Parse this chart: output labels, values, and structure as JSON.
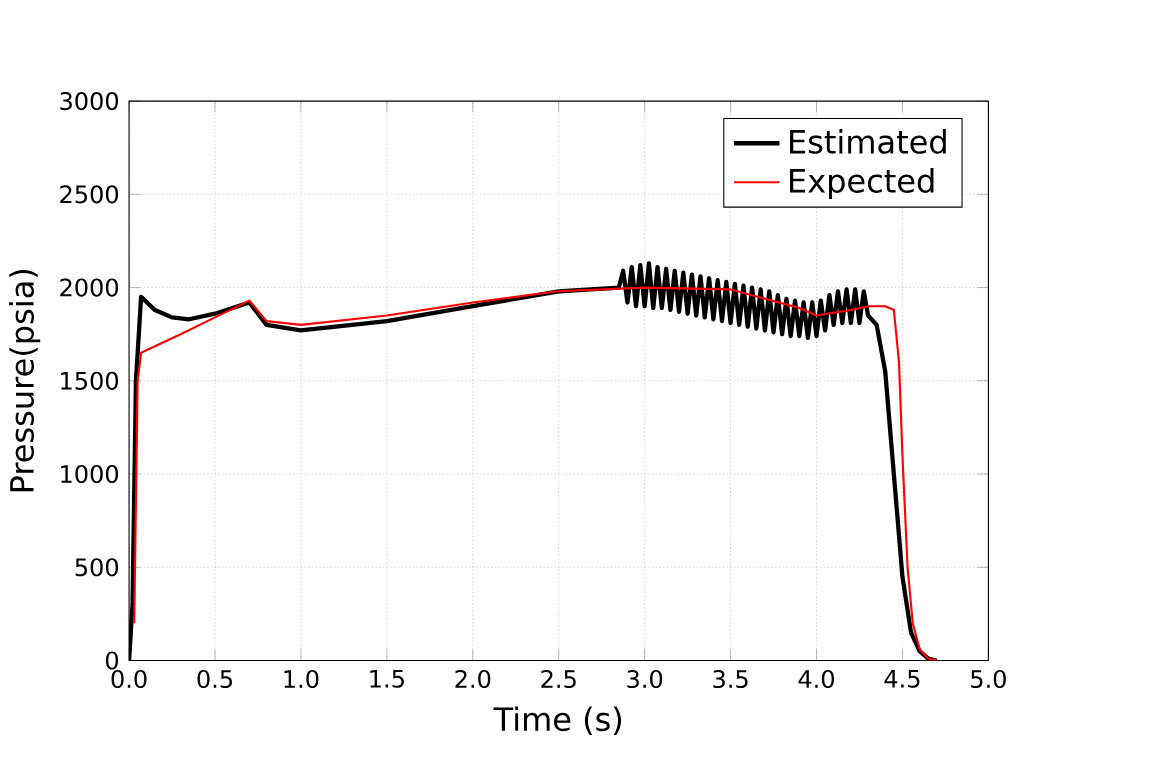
{
  "chart_data": {
    "type": "line",
    "xlabel": "Time (s)",
    "ylabel": "Pressure(psia)",
    "xlim": [
      0,
      5
    ],
    "ylim": [
      0,
      3000
    ],
    "xticks": [
      {
        "value": 0,
        "label": "0.0"
      },
      {
        "value": 0.5,
        "label": "0.5"
      },
      {
        "value": 1,
        "label": "1.0"
      },
      {
        "value": 1.5,
        "label": "1.5"
      },
      {
        "value": 2,
        "label": "2.0"
      },
      {
        "value": 2.5,
        "label": "2.5"
      },
      {
        "value": 3,
        "label": "3.0"
      },
      {
        "value": 3.5,
        "label": "3.5"
      },
      {
        "value": 4,
        "label": "4.0"
      },
      {
        "value": 4.5,
        "label": "4.5"
      },
      {
        "value": 5,
        "label": "5.0"
      }
    ],
    "yticks": [
      0,
      500,
      1000,
      1500,
      2000,
      2500,
      3000
    ],
    "grid": true,
    "legend": "top right",
    "marker": "none",
    "line_style": "solid",
    "series": [
      {
        "name": "Estimated",
        "color": "#000000",
        "x": [
          0,
          0.02,
          0.04,
          0.07,
          0.15,
          0.25,
          0.35,
          0.5,
          0.7,
          0.8,
          1.0,
          1.5,
          2.0,
          2.5,
          2.85,
          2.875,
          2.9,
          2.925,
          2.95,
          2.975,
          3.0,
          3.025,
          3.05,
          3.075,
          3.1,
          3.125,
          3.15,
          3.175,
          3.2,
          3.225,
          3.25,
          3.275,
          3.3,
          3.325,
          3.35,
          3.375,
          3.4,
          3.425,
          3.45,
          3.475,
          3.5,
          3.525,
          3.55,
          3.575,
          3.6,
          3.625,
          3.65,
          3.675,
          3.7,
          3.725,
          3.75,
          3.775,
          3.8,
          3.825,
          3.85,
          3.875,
          3.9,
          3.925,
          3.95,
          3.975,
          4.0,
          4.025,
          4.05,
          4.075,
          4.1,
          4.125,
          4.15,
          4.175,
          4.2,
          4.225,
          4.25,
          4.275,
          4.3,
          4.35,
          4.4,
          4.45,
          4.5,
          4.55,
          4.6,
          4.65,
          4.7
        ],
        "values": [
          0,
          300,
          1500,
          1950,
          1880,
          1840,
          1830,
          1860,
          1920,
          1800,
          1770,
          1820,
          1900,
          1980,
          2000,
          2090,
          1920,
          2110,
          1900,
          2120,
          1900,
          2130,
          1890,
          2110,
          1890,
          2100,
          1880,
          2090,
          1870,
          2080,
          1860,
          2070,
          1850,
          2060,
          1840,
          2050,
          1830,
          2040,
          1820,
          2030,
          1810,
          2020,
          1800,
          2010,
          1790,
          2000,
          1780,
          1990,
          1770,
          1980,
          1760,
          1960,
          1750,
          1940,
          1740,
          1930,
          1740,
          1920,
          1730,
          1920,
          1740,
          1930,
          1770,
          1960,
          1800,
          1980,
          1810,
          1990,
          1810,
          1990,
          1810,
          1980,
          1850,
          1800,
          1550,
          1000,
          450,
          150,
          50,
          10,
          0
        ]
      },
      {
        "name": "Expected",
        "color": "#ff0000",
        "x": [
          0.03,
          0.05,
          0.07,
          0.3,
          0.5,
          0.7,
          0.8,
          1.0,
          1.5,
          2.0,
          2.5,
          3.0,
          3.5,
          3.9,
          4.0,
          4.2,
          4.3,
          4.4,
          4.45,
          4.48,
          4.5,
          4.53,
          4.56,
          4.6,
          4.65,
          4.7
        ],
        "values": [
          200,
          1500,
          1650,
          1750,
          1840,
          1930,
          1820,
          1800,
          1850,
          1920,
          1980,
          2000,
          1990,
          1890,
          1850,
          1880,
          1900,
          1900,
          1880,
          1600,
          1100,
          500,
          200,
          60,
          10,
          0
        ]
      }
    ]
  }
}
